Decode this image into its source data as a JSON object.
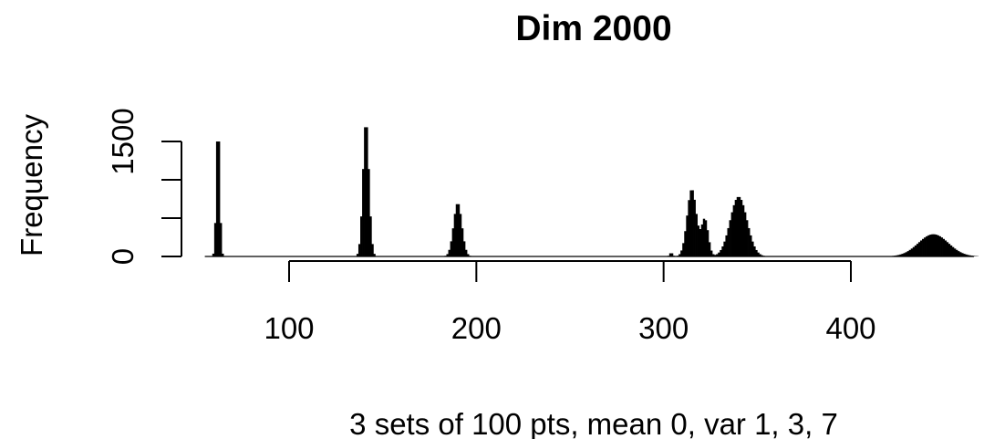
{
  "chart_data": {
    "type": "bar",
    "title": "Dim 2000",
    "xlabel": "3 sets of 100 pts, mean 0, var 1, 3, 7",
    "ylabel": "Frequency",
    "xlim": [
      40,
      470
    ],
    "ylim": [
      0,
      1800
    ],
    "xticks": [
      100,
      200,
      300,
      400
    ],
    "xtick_labels": [
      "100",
      "200",
      "300",
      "400"
    ],
    "yticks": [
      0,
      500,
      1000,
      1500
    ],
    "ytick_labels": [
      "0",
      "",
      "",
      "1500"
    ],
    "grid": false,
    "legend": "none",
    "series": [
      {
        "bin_width": 1,
        "peaks": [
          {
            "center": 62,
            "sd": 0.9,
            "peak": 1750
          },
          {
            "center": 141,
            "sd": 1.6,
            "peak": 1770
          },
          {
            "center": 190,
            "sd": 2.2,
            "peak": 700
          },
          {
            "center": 304,
            "sd": 0.8,
            "peak": 50
          },
          {
            "center": 315,
            "sd": 2.5,
            "peak": 880
          },
          {
            "center": 322,
            "sd": 1.8,
            "peak": 480
          },
          {
            "center": 340,
            "sd": 4.5,
            "peak": 780
          },
          {
            "center": 444,
            "sd": 8.0,
            "peak": 290
          }
        ]
      }
    ]
  }
}
